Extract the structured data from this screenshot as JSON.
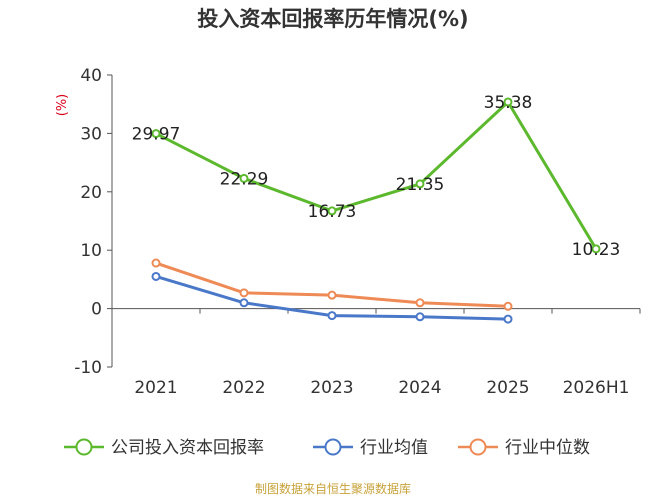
{
  "chart_data": {
    "type": "line",
    "title": "投入资本回报率历年情况(%)",
    "ylabel": "(%)",
    "categories": [
      "2021",
      "2022",
      "2023",
      "2024",
      "2025",
      "2026H1"
    ],
    "ylim": [
      -10,
      40
    ],
    "yticks": [
      "40",
      "30",
      "20",
      "10",
      "0",
      "-10"
    ],
    "series": [
      {
        "name": "公司投入资本回报率",
        "values": [
          29.97,
          22.29,
          16.73,
          21.35,
          35.38,
          10.23
        ],
        "labels": [
          "29.97",
          "22.29",
          "16.73",
          "21.35",
          "35.38",
          "10.23"
        ],
        "color": "#5cb82d"
      },
      {
        "name": "行业均值",
        "values": [
          5.5,
          1.0,
          -1.2,
          -1.4,
          -1.8,
          null
        ],
        "color": "#4a78c8"
      },
      {
        "name": "行业中位数",
        "values": [
          7.8,
          2.7,
          2.3,
          1.0,
          0.4,
          null
        ],
        "color": "#ee8a55"
      }
    ],
    "grid": false,
    "legend_position": "bottom"
  },
  "source": "制图数据来自恒生聚源数据库"
}
